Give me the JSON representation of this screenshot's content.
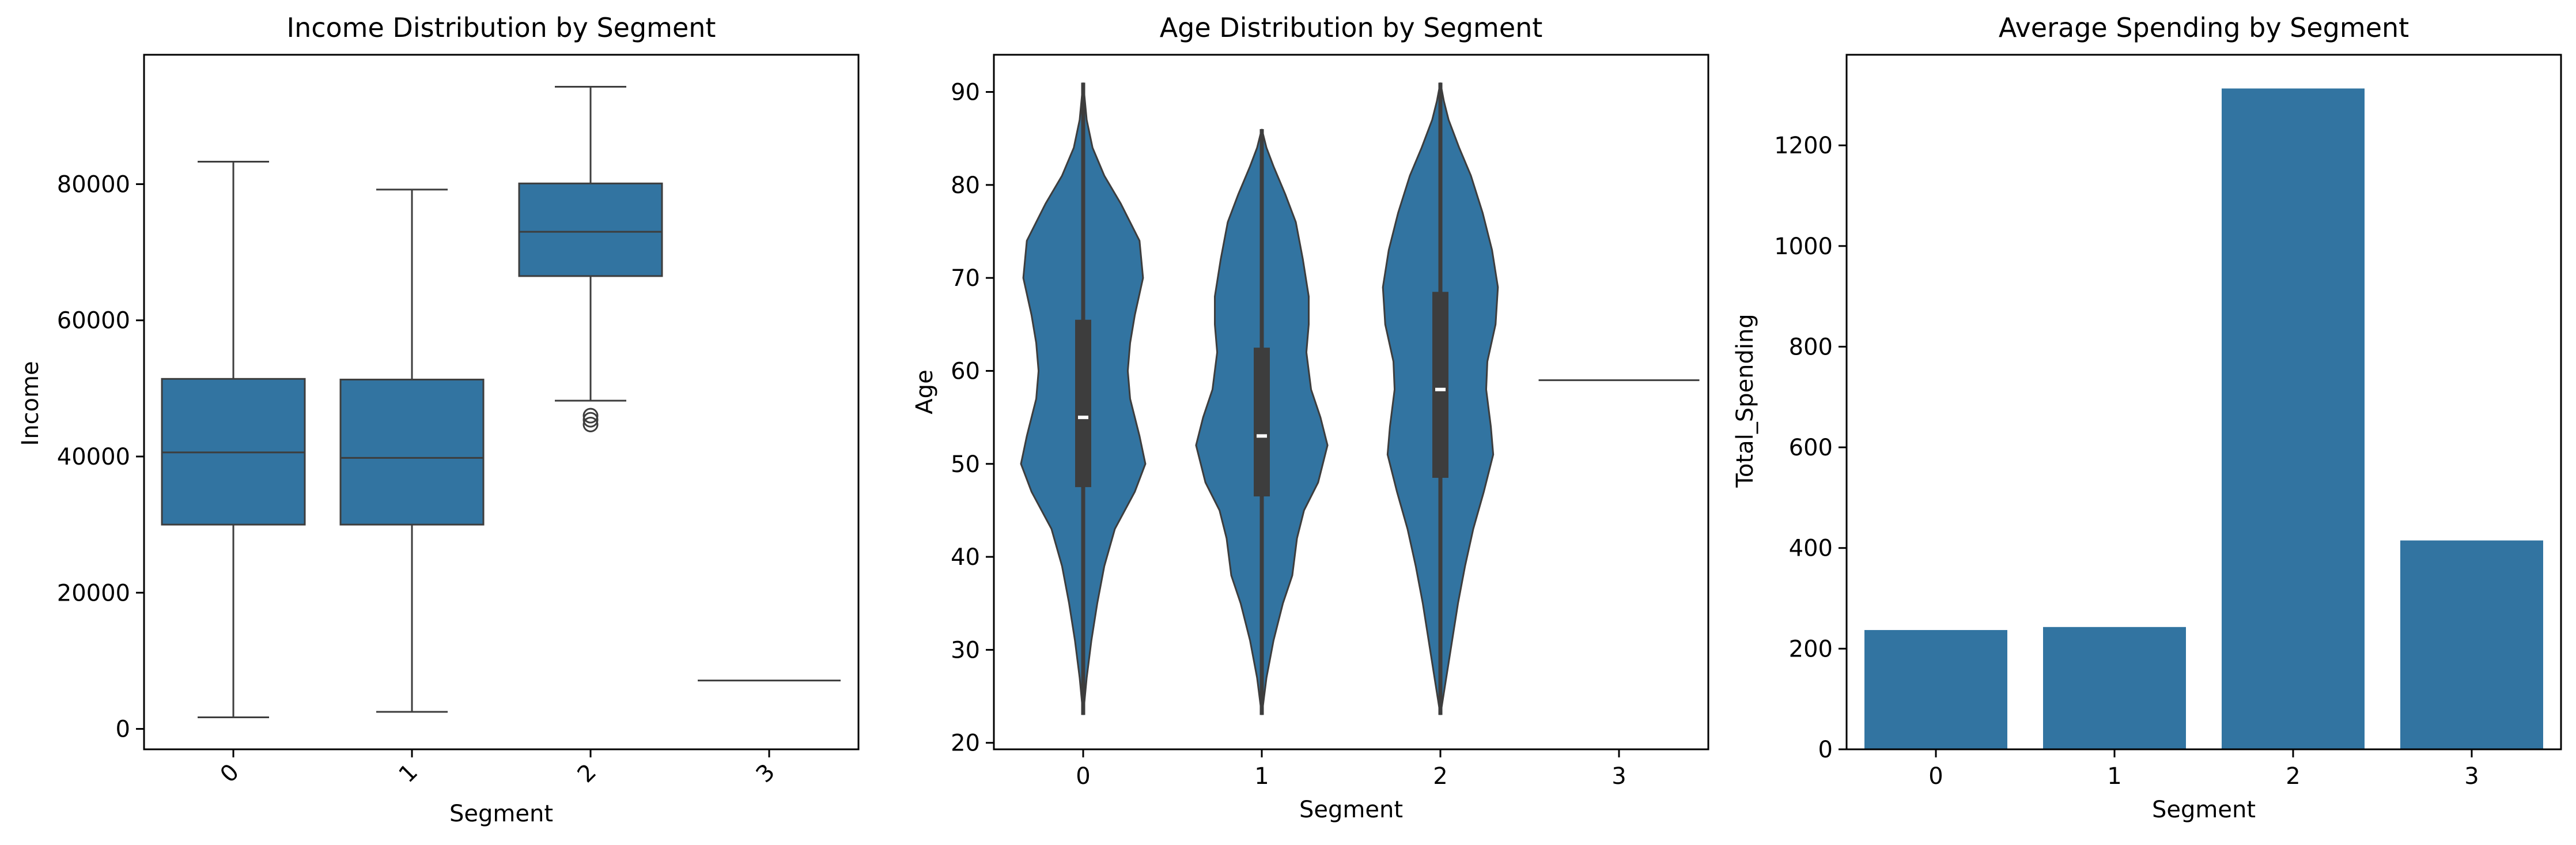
{
  "chart_data": [
    {
      "type": "box",
      "title": "Income Distribution by Segment",
      "xlabel": "Segment",
      "ylabel": "Income",
      "categories": [
        "0",
        "1",
        "2",
        "3"
      ],
      "ylim": [
        -3000,
        99000
      ],
      "yticks": [
        0,
        20000,
        40000,
        60000,
        80000
      ],
      "ytick_labels": [
        "0",
        "20000",
        "40000",
        "60000",
        "80000"
      ],
      "xtick_rotation": 45,
      "boxes": [
        {
          "whisker_low": 1700,
          "q1": 30000,
          "median": 40600,
          "q3": 51400,
          "whisker_high": 83300,
          "outliers": []
        },
        {
          "whisker_low": 2500,
          "q1": 30000,
          "median": 39800,
          "q3": 51300,
          "whisker_high": 79200,
          "outliers": []
        },
        {
          "whisker_low": 48200,
          "q1": 66500,
          "median": 73000,
          "q3": 80100,
          "whisker_high": 94300,
          "outliers": [
            44700,
            45400,
            46000
          ]
        },
        {
          "whisker_low": 7100,
          "q1": 7100,
          "median": 7100,
          "q3": 7100,
          "whisker_high": 7100,
          "outliers": []
        }
      ],
      "color": "#3274a1",
      "line_color": "#3d3d3d",
      "grid": false
    },
    {
      "type": "violin",
      "title": "Age Distribution by Segment",
      "xlabel": "Segment",
      "ylabel": "Age",
      "categories": [
        "0",
        "1",
        "2",
        "3"
      ],
      "ylim": [
        19.3,
        94.0
      ],
      "yticks": [
        20,
        30,
        40,
        50,
        60,
        70,
        80,
        90
      ],
      "ytick_labels": [
        "20",
        "30",
        "40",
        "50",
        "60",
        "70",
        "80",
        "90"
      ],
      "violins": [
        {
          "min": 23,
          "max": 91,
          "q1": 47.5,
          "median": 55,
          "q3": 65.5,
          "profile": [
            [
              23,
              0.0
            ],
            [
              27,
              0.015
            ],
            [
              31,
              0.035
            ],
            [
              35,
              0.06
            ],
            [
              39,
              0.09
            ],
            [
              43,
              0.135
            ],
            [
              47,
              0.22
            ],
            [
              50,
              0.265
            ],
            [
              53,
              0.24
            ],
            [
              57,
              0.2
            ],
            [
              60,
              0.19
            ],
            [
              63,
              0.2
            ],
            [
              66,
              0.22
            ],
            [
              70,
              0.255
            ],
            [
              74,
              0.24
            ],
            [
              78,
              0.16
            ],
            [
              81,
              0.09
            ],
            [
              84,
              0.04
            ],
            [
              87,
              0.015
            ],
            [
              91,
              0.0
            ]
          ]
        },
        {
          "min": 23,
          "max": 86,
          "q1": 46.5,
          "median": 53,
          "q3": 62.5,
          "profile": [
            [
              23,
              0.0
            ],
            [
              27,
              0.02
            ],
            [
              31,
              0.05
            ],
            [
              35,
              0.09
            ],
            [
              38,
              0.13
            ],
            [
              42,
              0.15
            ],
            [
              45,
              0.18
            ],
            [
              48,
              0.24
            ],
            [
              52,
              0.28
            ],
            [
              55,
              0.25
            ],
            [
              58,
              0.21
            ],
            [
              62,
              0.19
            ],
            [
              65,
              0.2
            ],
            [
              68,
              0.2
            ],
            [
              72,
              0.175
            ],
            [
              76,
              0.145
            ],
            [
              79,
              0.1
            ],
            [
              82,
              0.05
            ],
            [
              84,
              0.02
            ],
            [
              86,
              0.0
            ]
          ]
        },
        {
          "min": 23,
          "max": 91,
          "q1": 48.5,
          "median": 58,
          "q3": 68.5,
          "profile": [
            [
              23,
              0.0
            ],
            [
              27,
              0.025
            ],
            [
              31,
              0.05
            ],
            [
              35,
              0.075
            ],
            [
              39,
              0.105
            ],
            [
              43,
              0.14
            ],
            [
              47,
              0.185
            ],
            [
              51,
              0.225
            ],
            [
              54,
              0.215
            ],
            [
              58,
              0.195
            ],
            [
              61,
              0.2
            ],
            [
              65,
              0.235
            ],
            [
              69,
              0.245
            ],
            [
              73,
              0.22
            ],
            [
              77,
              0.18
            ],
            [
              81,
              0.13
            ],
            [
              84,
              0.08
            ],
            [
              87,
              0.035
            ],
            [
              89,
              0.015
            ],
            [
              91,
              0.0
            ]
          ]
        },
        {
          "min": 59,
          "max": 59,
          "q1": 59,
          "median": 59,
          "q3": 59,
          "profile": []
        }
      ],
      "color": "#3274a1",
      "line_color": "#3d3d3d",
      "grid": false
    },
    {
      "type": "bar",
      "title": "Average Spending by Segment",
      "xlabel": "Segment",
      "ylabel": "Total_Spending",
      "categories": [
        "0",
        "1",
        "2",
        "3"
      ],
      "values": [
        237,
        243,
        1313,
        415
      ],
      "ylim": [
        0,
        1380
      ],
      "yticks": [
        0,
        200,
        400,
        600,
        800,
        1000,
        1200
      ],
      "ytick_labels": [
        "0",
        "200",
        "400",
        "600",
        "800",
        "1000",
        "1200"
      ],
      "color": "#3274a1",
      "grid": false
    }
  ]
}
